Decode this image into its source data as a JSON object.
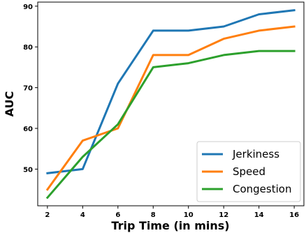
{
  "chart_data": {
    "type": "line",
    "title": "",
    "xlabel": "Trip Time (in mins)",
    "ylabel": "AUC",
    "x": [
      2,
      4,
      6,
      8,
      10,
      12,
      14,
      16
    ],
    "xlim": [
      1.45,
      16.55
    ],
    "ylim": [
      41,
      91
    ],
    "xticks": [
      "2",
      "4",
      "6",
      "8",
      "10",
      "12",
      "14",
      "16"
    ],
    "yticks": [
      "50",
      "60",
      "70",
      "80",
      "90"
    ],
    "grid": false,
    "legend_position": "lower-right",
    "series": [
      {
        "name": "Jerkiness",
        "color": "#1f77b4",
        "values": [
          49,
          50,
          71,
          84,
          84,
          85,
          88,
          89
        ]
      },
      {
        "name": "Speed",
        "color": "#ff7f0e",
        "values": [
          45,
          57,
          60,
          78,
          78,
          82,
          84,
          85
        ]
      },
      {
        "name": "Congestion",
        "color": "#2ca02c",
        "values": [
          43,
          53,
          61,
          75,
          76,
          78,
          79,
          79
        ]
      }
    ]
  }
}
